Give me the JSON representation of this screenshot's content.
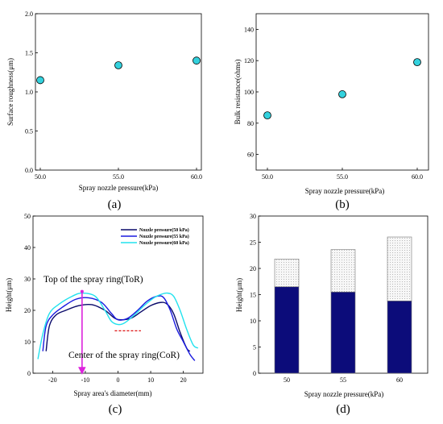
{
  "chart_data": [
    {
      "panel_label": "(a)",
      "type": "scatter",
      "xlabel": "Spray nozzle pressure(kPa)",
      "ylabel": "Surface roughness(μm)",
      "xlim": [
        50,
        60
      ],
      "ylim": [
        0,
        2.0
      ],
      "xticks": [
        "50.0",
        "55.0",
        "60.0"
      ],
      "yticks": [
        "0.0",
        "0.5",
        "1.0",
        "1.5",
        "2.0"
      ],
      "x": [
        50,
        55,
        60
      ],
      "y": [
        1.15,
        1.34,
        1.4
      ],
      "marker_color": "#33d1dd"
    },
    {
      "panel_label": "(b)",
      "type": "scatter",
      "xlabel": "Spray nozzle pressure(kPa)",
      "ylabel": "Bulk resistance(ohms)",
      "xlim": [
        50,
        60
      ],
      "ylim": [
        50,
        150
      ],
      "xticks": [
        "50.0",
        "55.0",
        "60.0"
      ],
      "yticks": [
        "60",
        "80",
        "100",
        "120",
        "140"
      ],
      "x": [
        50,
        55,
        60
      ],
      "y": [
        85,
        98.5,
        119
      ],
      "marker_color": "#33d1dd"
    },
    {
      "panel_label": "(c)",
      "type": "line",
      "xlabel": "Spray area's diameter(mm)",
      "ylabel": "Height(μm)",
      "xlim": [
        -26,
        26
      ],
      "ylim": [
        0,
        50
      ],
      "xticks": [
        "-20",
        "-10",
        "0",
        "10",
        "20"
      ],
      "yticks": [
        "0",
        "10",
        "20",
        "30",
        "40",
        "50"
      ],
      "legend_position": "top-right",
      "series": [
        {
          "name": "Nozzle pressure(50 kPa)",
          "color": "#0a0a6a",
          "x": [
            -22,
            -21,
            -19,
            -16,
            -12,
            -8,
            -4,
            -1,
            1,
            4,
            7,
            10,
            13,
            15,
            17,
            19,
            21,
            22
          ],
          "y": [
            7,
            15,
            18.5,
            20,
            21.5,
            21.8,
            20,
            17.5,
            17,
            17.5,
            19.5,
            21.5,
            22.5,
            22,
            19,
            13,
            8,
            7
          ]
        },
        {
          "name": "Nozzle pressure(55 kPa)",
          "color": "#1a1adf",
          "x": [
            -23,
            -22,
            -20,
            -17,
            -13,
            -9,
            -5,
            -2,
            0,
            3,
            6,
            9,
            12,
            14,
            16,
            18,
            20,
            22,
            23.5
          ],
          "y": [
            7,
            15,
            18.5,
            21,
            23.5,
            24,
            22.5,
            19,
            17,
            17.5,
            20,
            23,
            24.5,
            24,
            20,
            14,
            10,
            6,
            4
          ]
        },
        {
          "name": "Nozzle pressure(60 kPa)",
          "color": "#22e2ee",
          "x": [
            -24.5,
            -23,
            -21,
            -18,
            -14,
            -11,
            -7,
            -4,
            -2,
            0,
            2,
            5,
            8,
            11,
            13,
            15,
            17,
            19,
            21,
            23,
            24.5
          ],
          "y": [
            4.5,
            12.5,
            19,
            22,
            24.5,
            25.5,
            24.5,
            20,
            16.5,
            15.5,
            16,
            18.5,
            21.5,
            24,
            25,
            25.5,
            24.5,
            20,
            14,
            9,
            8
          ]
        }
      ],
      "annotations": [
        {
          "text": "Top of the spray ring(ToR)",
          "color": "#000000"
        },
        {
          "text": "Center of the spray ring(CoR)",
          "color": "#000000"
        }
      ],
      "arrow": {
        "x": -11,
        "y_from": 26,
        "y_to": 0,
        "color": "#dd22dd"
      },
      "dashed_segment": {
        "x_from": -1,
        "x_to": 7,
        "y": 13.5,
        "color": "#dd1111"
      }
    },
    {
      "panel_label": "(d)",
      "type": "bar",
      "stacked": true,
      "xlabel": "Spray nozzle pressure(kPa)",
      "ylabel": "Height(μm)",
      "ylim": [
        0,
        30
      ],
      "yticks": [
        "0",
        "5",
        "10",
        "15",
        "20",
        "25",
        "30"
      ],
      "categories": [
        "50",
        "55",
        "60"
      ],
      "series": [
        {
          "color": "#0c0c7a",
          "values": [
            16.5,
            15.5,
            13.8
          ]
        },
        {
          "color": "#f2f2f2",
          "pattern": "dotted",
          "values": [
            5.3,
            8.1,
            12.2
          ]
        }
      ]
    }
  ]
}
